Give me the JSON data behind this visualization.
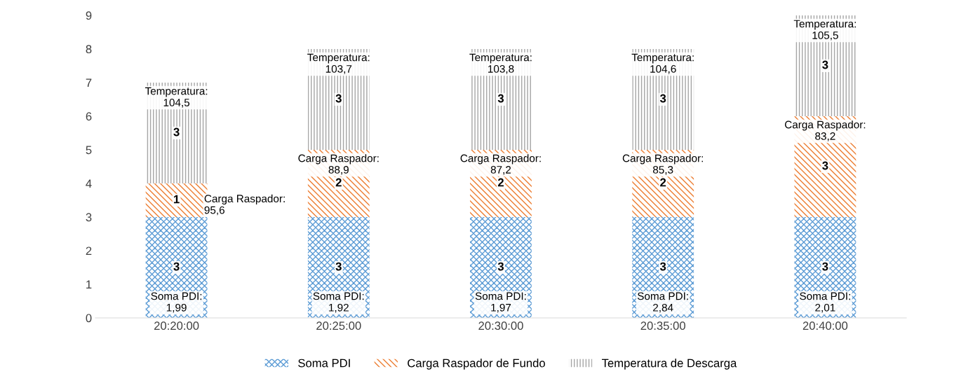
{
  "chart_data": {
    "type": "bar",
    "stacked": true,
    "categories": [
      "20:20:00",
      "20:25:00",
      "20:30:00",
      "20:35:00",
      "20:40:00"
    ],
    "series": [
      {
        "name": "Soma PDI",
        "color": "#5b9bd5",
        "values": [
          3,
          3,
          3,
          3,
          3
        ]
      },
      {
        "name": "Carga Raspador de Fundo",
        "color": "#ed7d31",
        "values": [
          1,
          2,
          2,
          2,
          3
        ]
      },
      {
        "name": "Temperatura de Descarga",
        "color": "#a5a5a5",
        "values": [
          3,
          3,
          3,
          3,
          3
        ]
      }
    ],
    "ylim": [
      0,
      9
    ],
    "yticks": [
      0,
      1,
      2,
      3,
      4,
      5,
      6,
      7,
      8,
      9
    ],
    "grid": false,
    "legend": "bottom",
    "data_labels": true,
    "annotations": [
      "Soma PDI:\n1,99",
      "Soma PDI:\n1,92",
      "Soma PDI:\n1,97",
      "Soma PDI:\n2,84",
      "Soma PDI:\n2,01",
      "Carga Raspador:\n95,6",
      "Carga Raspador:\n88,9",
      "Carga Raspador:\n87,2",
      "Carga Raspador:\n85,3",
      "Carga Raspador:\n83,2",
      "Temperatura:\n104,5",
      "Temperatura:\n103,7",
      "Temperatura:\n103,8",
      "Temperatura:\n104,6",
      "Temperatura:\n105,5"
    ]
  }
}
